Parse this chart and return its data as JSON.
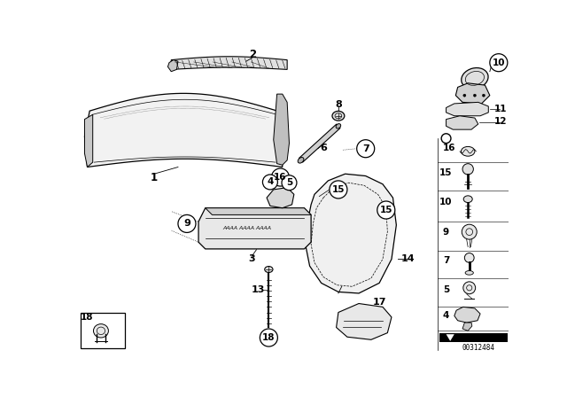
{
  "bg_color": "#ffffff",
  "part_number": "00312484",
  "fig_width": 6.4,
  "fig_height": 4.48,
  "dpi": 100
}
